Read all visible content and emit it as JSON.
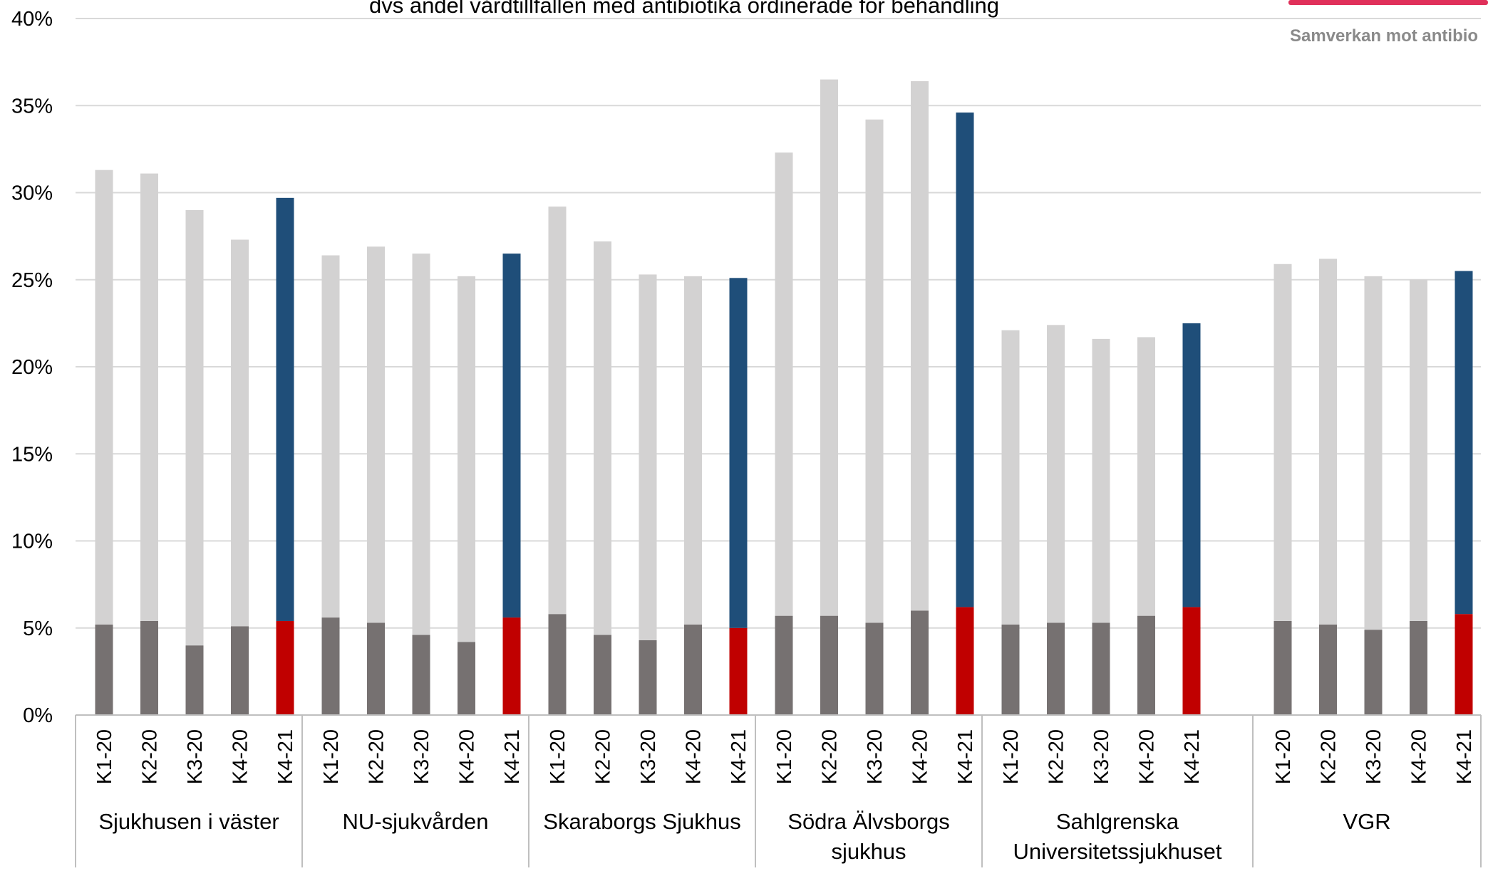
{
  "header": {
    "title_partial": "dvs andel vårdtillfällen med antibiotika ordinerade för behandling",
    "logo_subtitle_partial": "Samverkan mot antibio"
  },
  "colors": {
    "baseline_top": "#d3d2d2",
    "baseline_bottom": "#767171",
    "current_top": "#1f4e79",
    "current_bottom": "#c00000",
    "grid": "#d9d9d9",
    "axis": "#bfbfbf",
    "logo_accent": "#e0305a"
  },
  "chart_data": {
    "type": "bar",
    "stacked": true,
    "ylim": [
      0,
      40
    ],
    "yticks": [
      0,
      5,
      10,
      15,
      20,
      25,
      30,
      35,
      40
    ],
    "ytick_labels": [
      "0%",
      "5%",
      "10%",
      "15%",
      "20%",
      "25%",
      "30%",
      "35%",
      "40%"
    ],
    "grid": true,
    "legend": "none",
    "groups": [
      {
        "label_lines": [
          "Sjukhusen i väster"
        ],
        "categories": [
          "K1-20",
          "K2-20",
          "K3-20",
          "K4-20",
          "K4-21"
        ],
        "bottom": [
          5.2,
          5.4,
          4.0,
          5.1,
          5.4
        ],
        "total": [
          31.3,
          31.1,
          29.0,
          27.3,
          29.7
        ]
      },
      {
        "label_lines": [
          "NU-sjukvården"
        ],
        "categories": [
          "K1-20",
          "K2-20",
          "K3-20",
          "K4-20",
          "K4-21"
        ],
        "bottom": [
          5.6,
          5.3,
          4.6,
          4.2,
          5.6
        ],
        "total": [
          26.4,
          26.9,
          26.5,
          25.2,
          26.5
        ]
      },
      {
        "label_lines": [
          "Skaraborgs Sjukhus"
        ],
        "categories": [
          "K1-20",
          "K2-20",
          "K3-20",
          "K4-20",
          "K4-21"
        ],
        "bottom": [
          5.8,
          4.6,
          4.3,
          5.2,
          5.0
        ],
        "total": [
          29.2,
          27.2,
          25.3,
          25.2,
          25.1
        ]
      },
      {
        "label_lines": [
          "Södra Älvsborgs",
          "sjukhus"
        ],
        "categories": [
          "K1-20",
          "K2-20",
          "K3-20",
          "K4-20",
          "K4-21"
        ],
        "bottom": [
          5.7,
          5.7,
          5.3,
          6.0,
          6.2
        ],
        "total": [
          32.3,
          36.5,
          34.2,
          36.4,
          34.6
        ]
      },
      {
        "label_lines": [
          "Sahlgrenska",
          "Universitetssjukhuset"
        ],
        "categories": [
          "K1-20",
          "K2-20",
          "K3-20",
          "K4-20",
          "K4-21"
        ],
        "bottom": [
          5.2,
          5.3,
          5.3,
          5.7,
          6.2
        ],
        "total": [
          22.1,
          22.4,
          21.6,
          21.7,
          22.5
        ]
      },
      {
        "label_lines": [
          "VGR"
        ],
        "categories": [
          "K1-20",
          "K2-20",
          "K3-20",
          "K4-20",
          "K4-21"
        ],
        "bottom": [
          5.4,
          5.2,
          4.9,
          5.4,
          5.8
        ],
        "total": [
          25.9,
          26.2,
          25.2,
          25.0,
          25.5
        ]
      }
    ]
  }
}
